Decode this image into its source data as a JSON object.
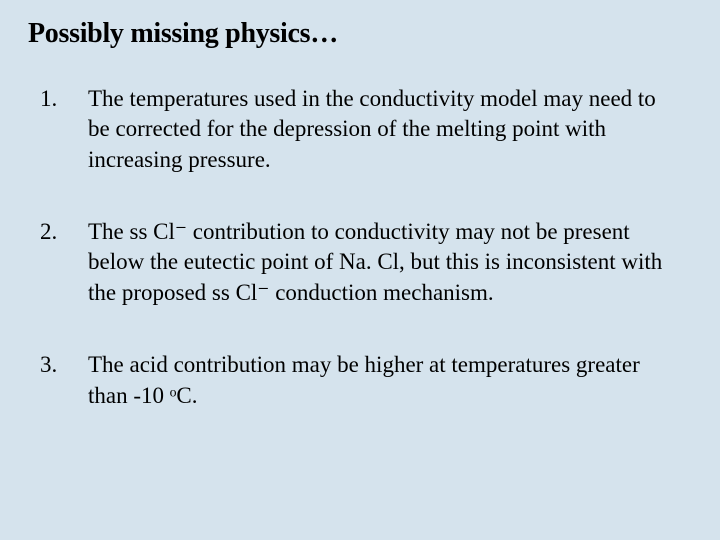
{
  "title": "Possibly missing physics…",
  "background_color": "#d5e3ed",
  "text_color": "#000000",
  "title_fontsize": 28,
  "body_fontsize": 23,
  "font_family": "Georgia, serif",
  "items": [
    {
      "number": "1.",
      "text": "The temperatures used in the conductivity model may need to be corrected for the depression of the melting point with increasing pressure."
    },
    {
      "number": "2.",
      "text": "The ss Cl⁻ contribution to conductivity may not be present below the eutectic point of Na. Cl, but this is inconsistent with the proposed ss Cl⁻ conduction mechanism."
    },
    {
      "number": "3.",
      "text": "The acid contribution may be higher at temperatures greater than -10 ᵒC."
    }
  ]
}
